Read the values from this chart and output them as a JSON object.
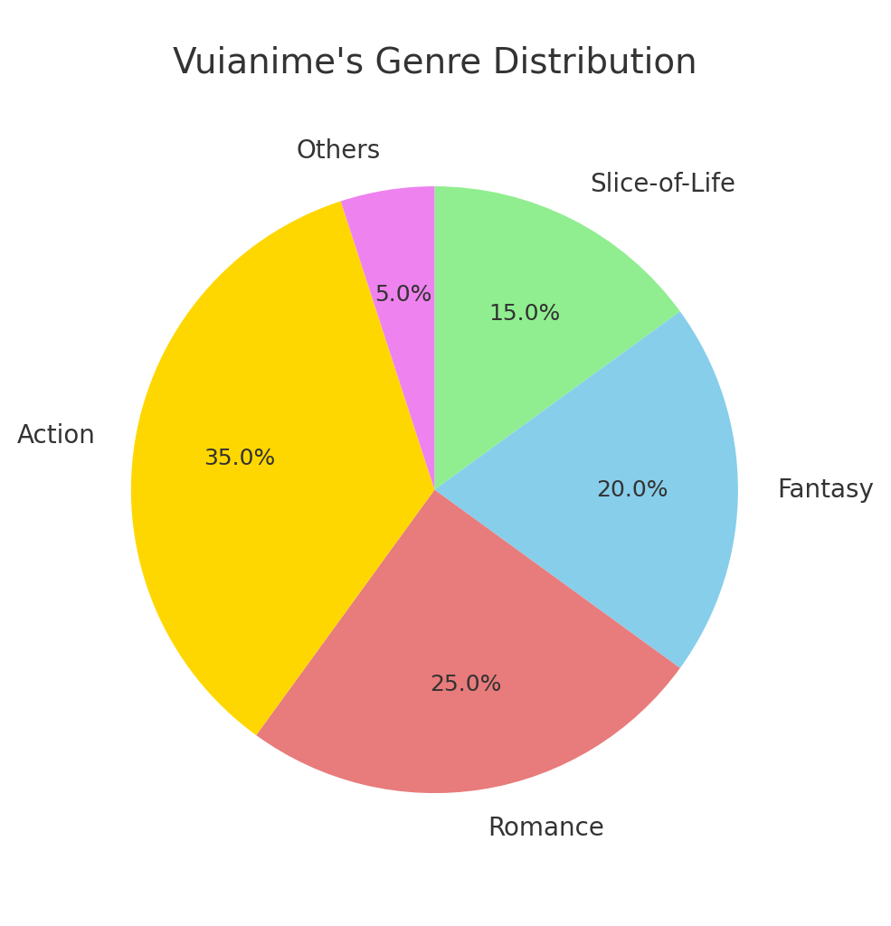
{
  "title": "Vuianime's Genre Distribution",
  "title_fontsize": 28,
  "title_color": "#333333",
  "labels": [
    "Slice-of-Life",
    "Fantasy",
    "Romance",
    "Action",
    "Others"
  ],
  "values": [
    15,
    20,
    25,
    35,
    5
  ],
  "colors": [
    "#90EE90",
    "#87CEEB",
    "#E87B7B",
    "#FFD700",
    "#EE82EE"
  ],
  "label_fontsize": 20,
  "autopct_fontsize": 18,
  "startangle": 90,
  "background_color": "#ffffff"
}
